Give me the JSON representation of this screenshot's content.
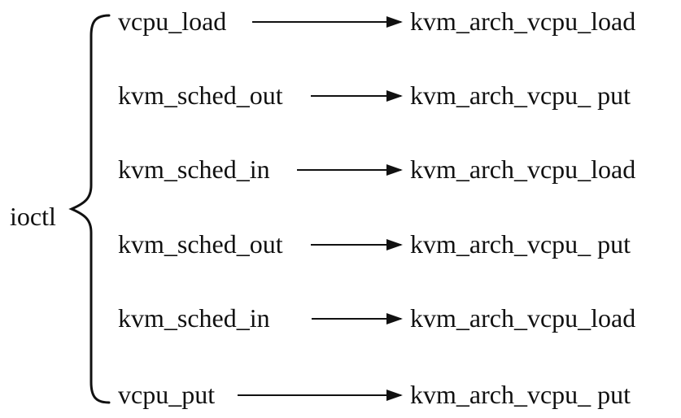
{
  "diagram": {
    "root": "ioctl",
    "rows": [
      {
        "source": "vcpu_load",
        "target": "kvm_arch_vcpu_load"
      },
      {
        "source": "kvm_sched_out",
        "target": "kvm_arch_vcpu_ put"
      },
      {
        "source": "kvm_sched_in",
        "target": "kvm_arch_vcpu_load"
      },
      {
        "source": "kvm_sched_out",
        "target": "kvm_arch_vcpu_ put"
      },
      {
        "source": "kvm_sched_in",
        "target": "kvm_arch_vcpu_load"
      },
      {
        "source": "vcpu_put",
        "target": "kvm_arch_vcpu_ put"
      }
    ]
  }
}
